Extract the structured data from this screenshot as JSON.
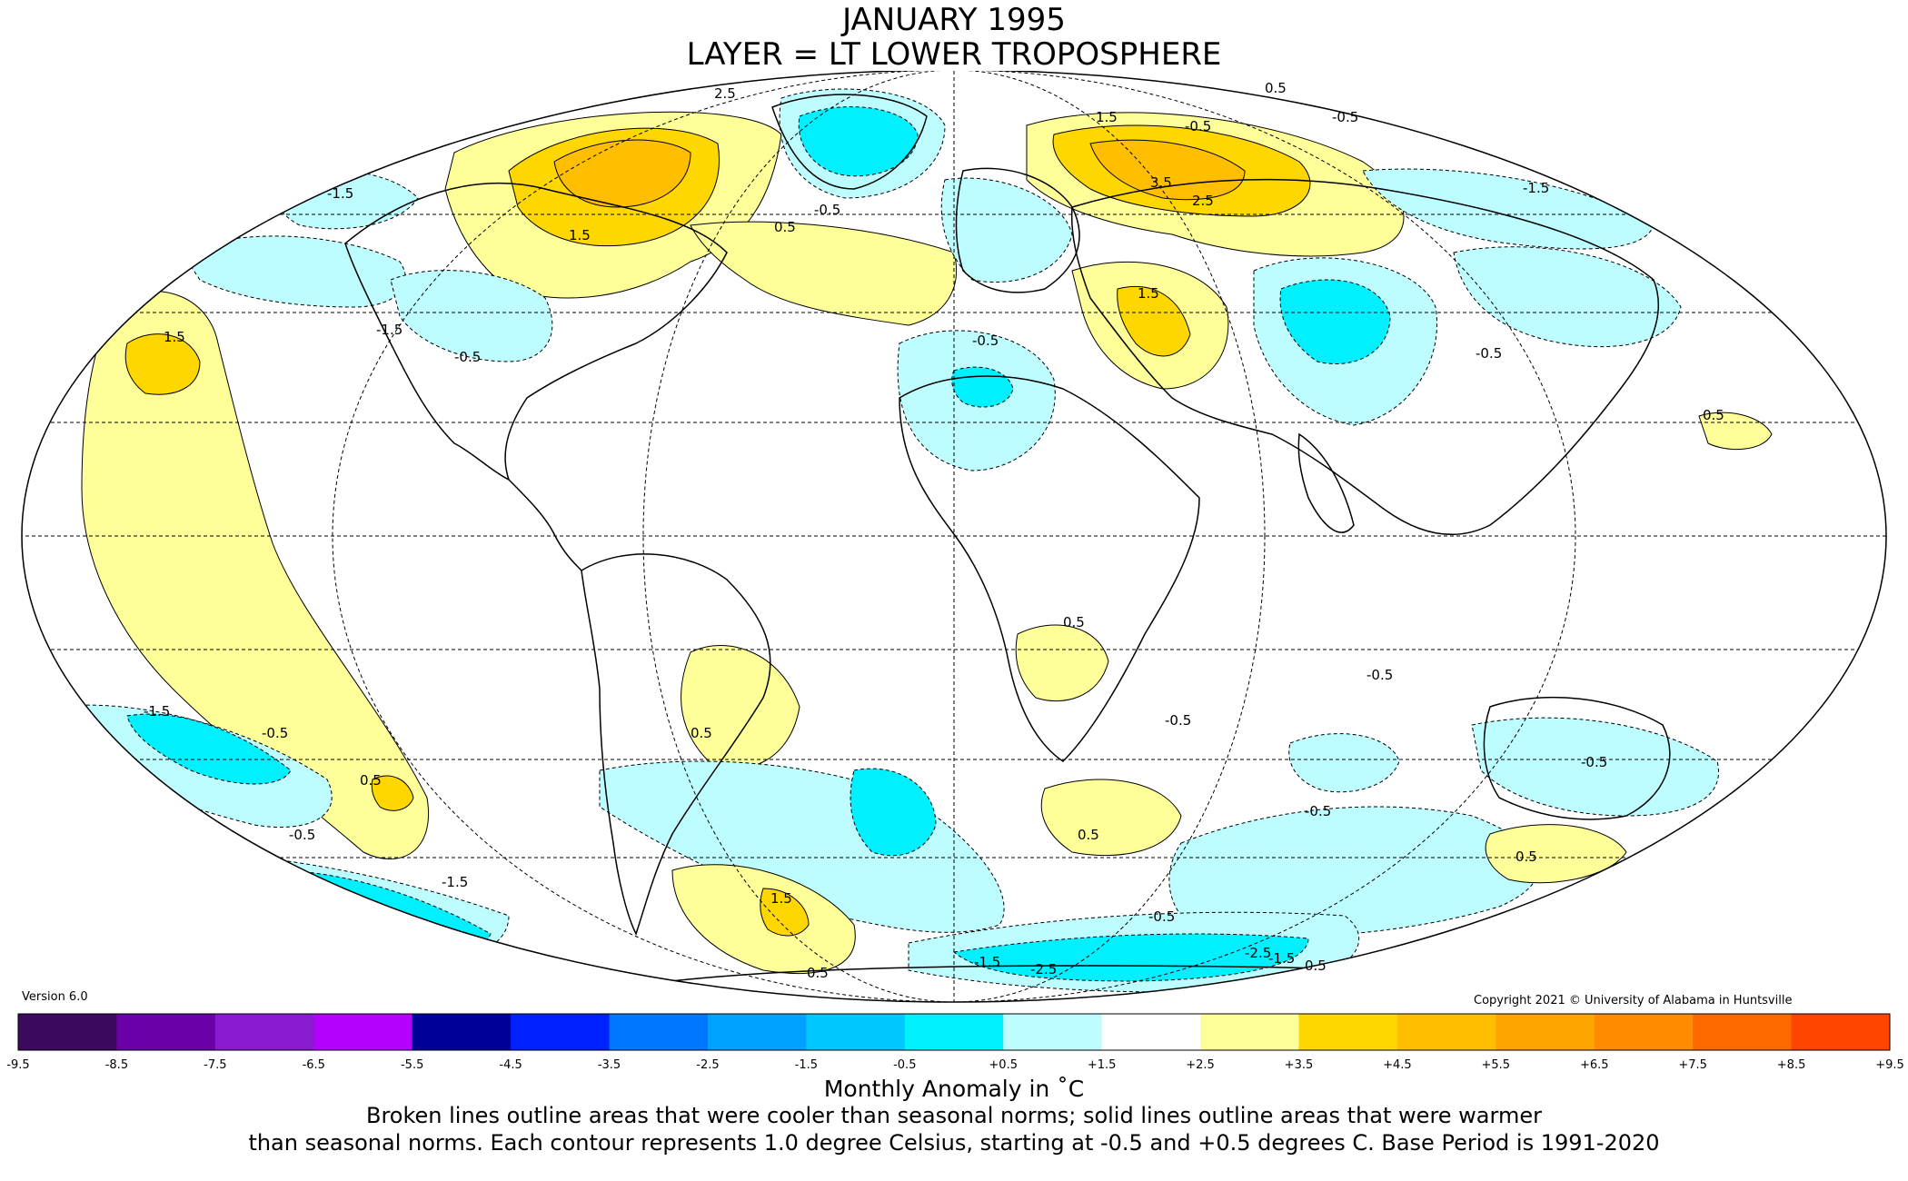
{
  "title": {
    "line1": "JANUARY 1995",
    "line2": "LAYER = LT LOWER TROPOSPHERE"
  },
  "version": "Version 6.0",
  "copyright": "Copyright 2021 © University of Alabama in Huntsville",
  "colorbar": {
    "ticks": [
      "-9.5",
      "-8.5",
      "-7.5",
      "-6.5",
      "-5.5",
      "-4.5",
      "-3.5",
      "-2.5",
      "-1.5",
      "-0.5",
      "+0.5",
      "+1.5",
      "+2.5",
      "+3.5",
      "+4.5",
      "+5.5",
      "+6.5",
      "+7.5",
      "+8.5",
      "+9.5"
    ],
    "colors": [
      "#3b0a5e",
      "#6a00a8",
      "#8a1ad0",
      "#b400ff",
      "#000099",
      "#0022ff",
      "#0077ff",
      "#00a2ff",
      "#00c8ff",
      "#00f0ff",
      "#bdfdff",
      "#ffffff",
      "#ffff99",
      "#ffd700",
      "#ffbf00",
      "#ffa500",
      "#ff8c00",
      "#ff6a00",
      "#ff4500",
      "#e10000",
      "#b30000"
    ],
    "label": "Monthly Anomaly in ˚C"
  },
  "caption": {
    "line1": "Broken lines outline areas that were cooler than seasonal norms; solid lines outline areas that were warmer",
    "line2": "than seasonal norms. Each contour represents 1.0 degree Celsius, starting at -0.5 and +0.5 degrees C. Base Period is 1991-2020"
  },
  "contour_labels": [
    {
      "text": "2.5",
      "kind": "warm"
    },
    {
      "text": "1.5",
      "kind": "warm"
    },
    {
      "text": "0.5",
      "kind": "warm"
    },
    {
      "text": "-1.5",
      "kind": "cool"
    },
    {
      "text": "-0.5",
      "kind": "cool"
    },
    {
      "text": "3.5",
      "kind": "warm"
    },
    {
      "text": "2.5",
      "kind": "warm"
    },
    {
      "text": "-0.5",
      "kind": "cool"
    },
    {
      "text": "1.5",
      "kind": "warm"
    },
    {
      "text": "1.5",
      "kind": "warm"
    },
    {
      "text": "0.5",
      "kind": "warm"
    },
    {
      "text": "-0.5",
      "kind": "cool"
    },
    {
      "text": "-1.5",
      "kind": "cool"
    },
    {
      "text": "-0.5",
      "kind": "cool"
    },
    {
      "text": "1.5",
      "kind": "warm"
    },
    {
      "text": "-0.5",
      "kind": "cool"
    },
    {
      "text": "-1.5",
      "kind": "cool"
    },
    {
      "text": "-0.5",
      "kind": "cool"
    },
    {
      "text": "0.5",
      "kind": "warm"
    },
    {
      "text": "0.5",
      "kind": "warm"
    },
    {
      "text": "-1.5",
      "kind": "cool"
    },
    {
      "text": "-0.5",
      "kind": "cool"
    },
    {
      "text": "0.5",
      "kind": "warm"
    },
    {
      "text": "-0.5",
      "kind": "cool"
    },
    {
      "text": "-1.5",
      "kind": "cool"
    },
    {
      "text": "0.5",
      "kind": "warm"
    },
    {
      "text": "-0.5",
      "kind": "cool"
    },
    {
      "text": "0.5",
      "kind": "warm"
    },
    {
      "text": "-0.5",
      "kind": "cool"
    },
    {
      "text": "1.5",
      "kind": "warm"
    },
    {
      "text": "-0.5",
      "kind": "cool"
    },
    {
      "text": "-1.5",
      "kind": "cool"
    },
    {
      "text": "-2.5",
      "kind": "cool"
    },
    {
      "text": "-2.5",
      "kind": "cool"
    },
    {
      "text": "-1.5",
      "kind": "cool"
    },
    {
      "text": "0.5",
      "kind": "warm"
    },
    {
      "text": "0.5",
      "kind": "warm"
    },
    {
      "text": "-0.5",
      "kind": "cool"
    },
    {
      "text": "0.5",
      "kind": "warm"
    },
    {
      "text": "-0.5",
      "kind": "cool"
    }
  ]
}
